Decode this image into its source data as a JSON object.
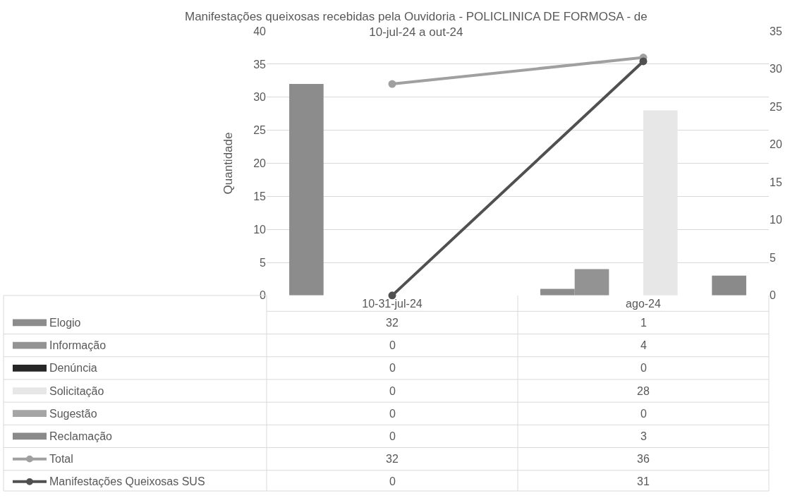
{
  "chart_data": {
    "type": "bar",
    "title": "Manifestações queixosas recebidas pela Ouvidoria - POLICLINICA DE FORMOSA - de 10-jul-24 a out-24",
    "ylabel": "Quantidade",
    "categories": [
      "10-31-jul-24",
      "ago-24"
    ],
    "series": [
      {
        "name": "Elogio",
        "color": "#8c8c8c",
        "values": [
          32,
          1
        ]
      },
      {
        "name": "Informação",
        "color": "#939393",
        "values": [
          0,
          4
        ]
      },
      {
        "name": "Denúncia",
        "color": "#262626",
        "values": [
          0,
          0
        ]
      },
      {
        "name": "Solicitação",
        "color": "#e7e7e7",
        "values": [
          0,
          28
        ]
      },
      {
        "name": "Sugestão",
        "color": "#a5a5a5",
        "values": [
          0,
          0
        ]
      },
      {
        "name": "Reclamação",
        "color": "#8a8a8a",
        "values": [
          0,
          3
        ]
      },
      {
        "name": "Total",
        "type": "line",
        "color": "#a0a0a0",
        "values": [
          32,
          36
        ]
      },
      {
        "name": "Manifestações Queixosas SUS",
        "type": "line",
        "axis": "y2",
        "color": "#505050",
        "values": [
          0,
          31
        ]
      }
    ],
    "ylim": [
      0,
      40
    ],
    "yticks": [
      0,
      5,
      10,
      15,
      20,
      25,
      30,
      35,
      40
    ],
    "y2lim": [
      0,
      35
    ],
    "y2ticks": [
      0,
      5,
      10,
      15,
      20,
      25,
      30,
      35
    ],
    "grid": "y",
    "marker": "circle",
    "legend": "bottom left",
    "data_labels": true
  }
}
